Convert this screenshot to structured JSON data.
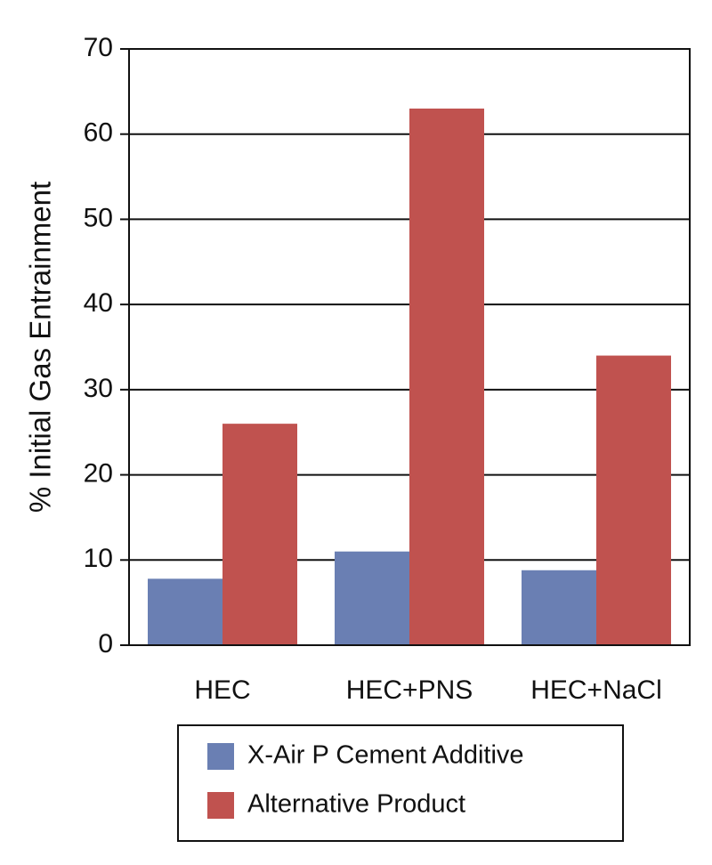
{
  "chart_data": {
    "type": "bar",
    "y_label": "% Initial Gas Entrainment",
    "categories": [
      "HEC",
      "HEC+PNS",
      "HEC+NaCl"
    ],
    "series": [
      {
        "name": "X-Air P Cement Additive",
        "color": "#6a7fb3",
        "values": [
          7.8,
          11,
          8.8
        ]
      },
      {
        "name": "Alternative Product",
        "color": "#c0524f",
        "values": [
          26,
          63,
          34
        ]
      }
    ],
    "ylim": [
      0,
      70
    ],
    "yticks": [
      0,
      10,
      20,
      30,
      40,
      50,
      60,
      70
    ],
    "grid": true,
    "legend": "bottom"
  }
}
